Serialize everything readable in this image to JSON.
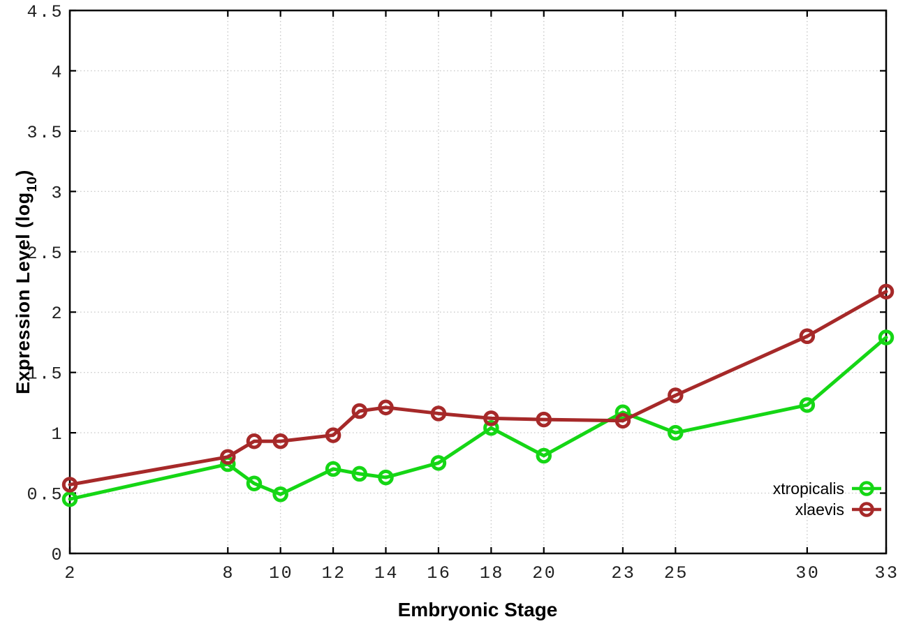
{
  "page": {
    "background": "#ffffff"
  },
  "chart_data": {
    "type": "line",
    "title": "",
    "xlabel": "Embryonic Stage",
    "ylabel": "Expression Level (log10)",
    "ylabel_parts": {
      "text": "Expression Level (log",
      "subscript": "10",
      "suffix": ")"
    },
    "xlim": [
      2,
      33
    ],
    "ylim": [
      0,
      4.5
    ],
    "xticks": [
      2,
      8,
      10,
      12,
      14,
      16,
      18,
      20,
      23,
      25,
      30,
      33
    ],
    "xtick_labels": [
      "2",
      "8",
      "10",
      "12",
      "14",
      "16",
      "18",
      "20",
      "23",
      "25",
      "30",
      "33"
    ],
    "yticks": [
      0,
      0.5,
      1,
      1.5,
      2,
      2.5,
      3,
      3.5,
      4,
      4.5
    ],
    "ytick_labels": [
      "0",
      "0.5",
      "1",
      "1.5",
      "2",
      "2.5",
      "3",
      "3.5",
      "4",
      "4.5"
    ],
    "grid": true,
    "grid_style": "dotted",
    "legend_position": "bottom-right",
    "x": [
      2,
      8,
      9,
      10,
      12,
      13,
      14,
      16,
      18,
      20,
      23,
      25,
      30,
      33
    ],
    "series": [
      {
        "name": "xtropicalis",
        "color": "#15d615",
        "values": [
          0.45,
          0.74,
          0.58,
          0.49,
          0.7,
          0.66,
          0.63,
          0.75,
          1.04,
          0.81,
          1.17,
          1.0,
          1.23,
          1.79
        ]
      },
      {
        "name": "xlaevis",
        "color": "#a62929",
        "values": [
          0.57,
          0.8,
          0.93,
          0.93,
          0.98,
          1.18,
          1.21,
          1.16,
          1.12,
          1.11,
          1.1,
          1.31,
          1.8,
          2.17
        ]
      }
    ],
    "axis_color": "#000000",
    "grid_color": "#c9c9c9",
    "tick_label_color": "#202020"
  },
  "legend": {
    "items": [
      {
        "label": "xtropicalis"
      },
      {
        "label": "xlaevis"
      }
    ]
  }
}
